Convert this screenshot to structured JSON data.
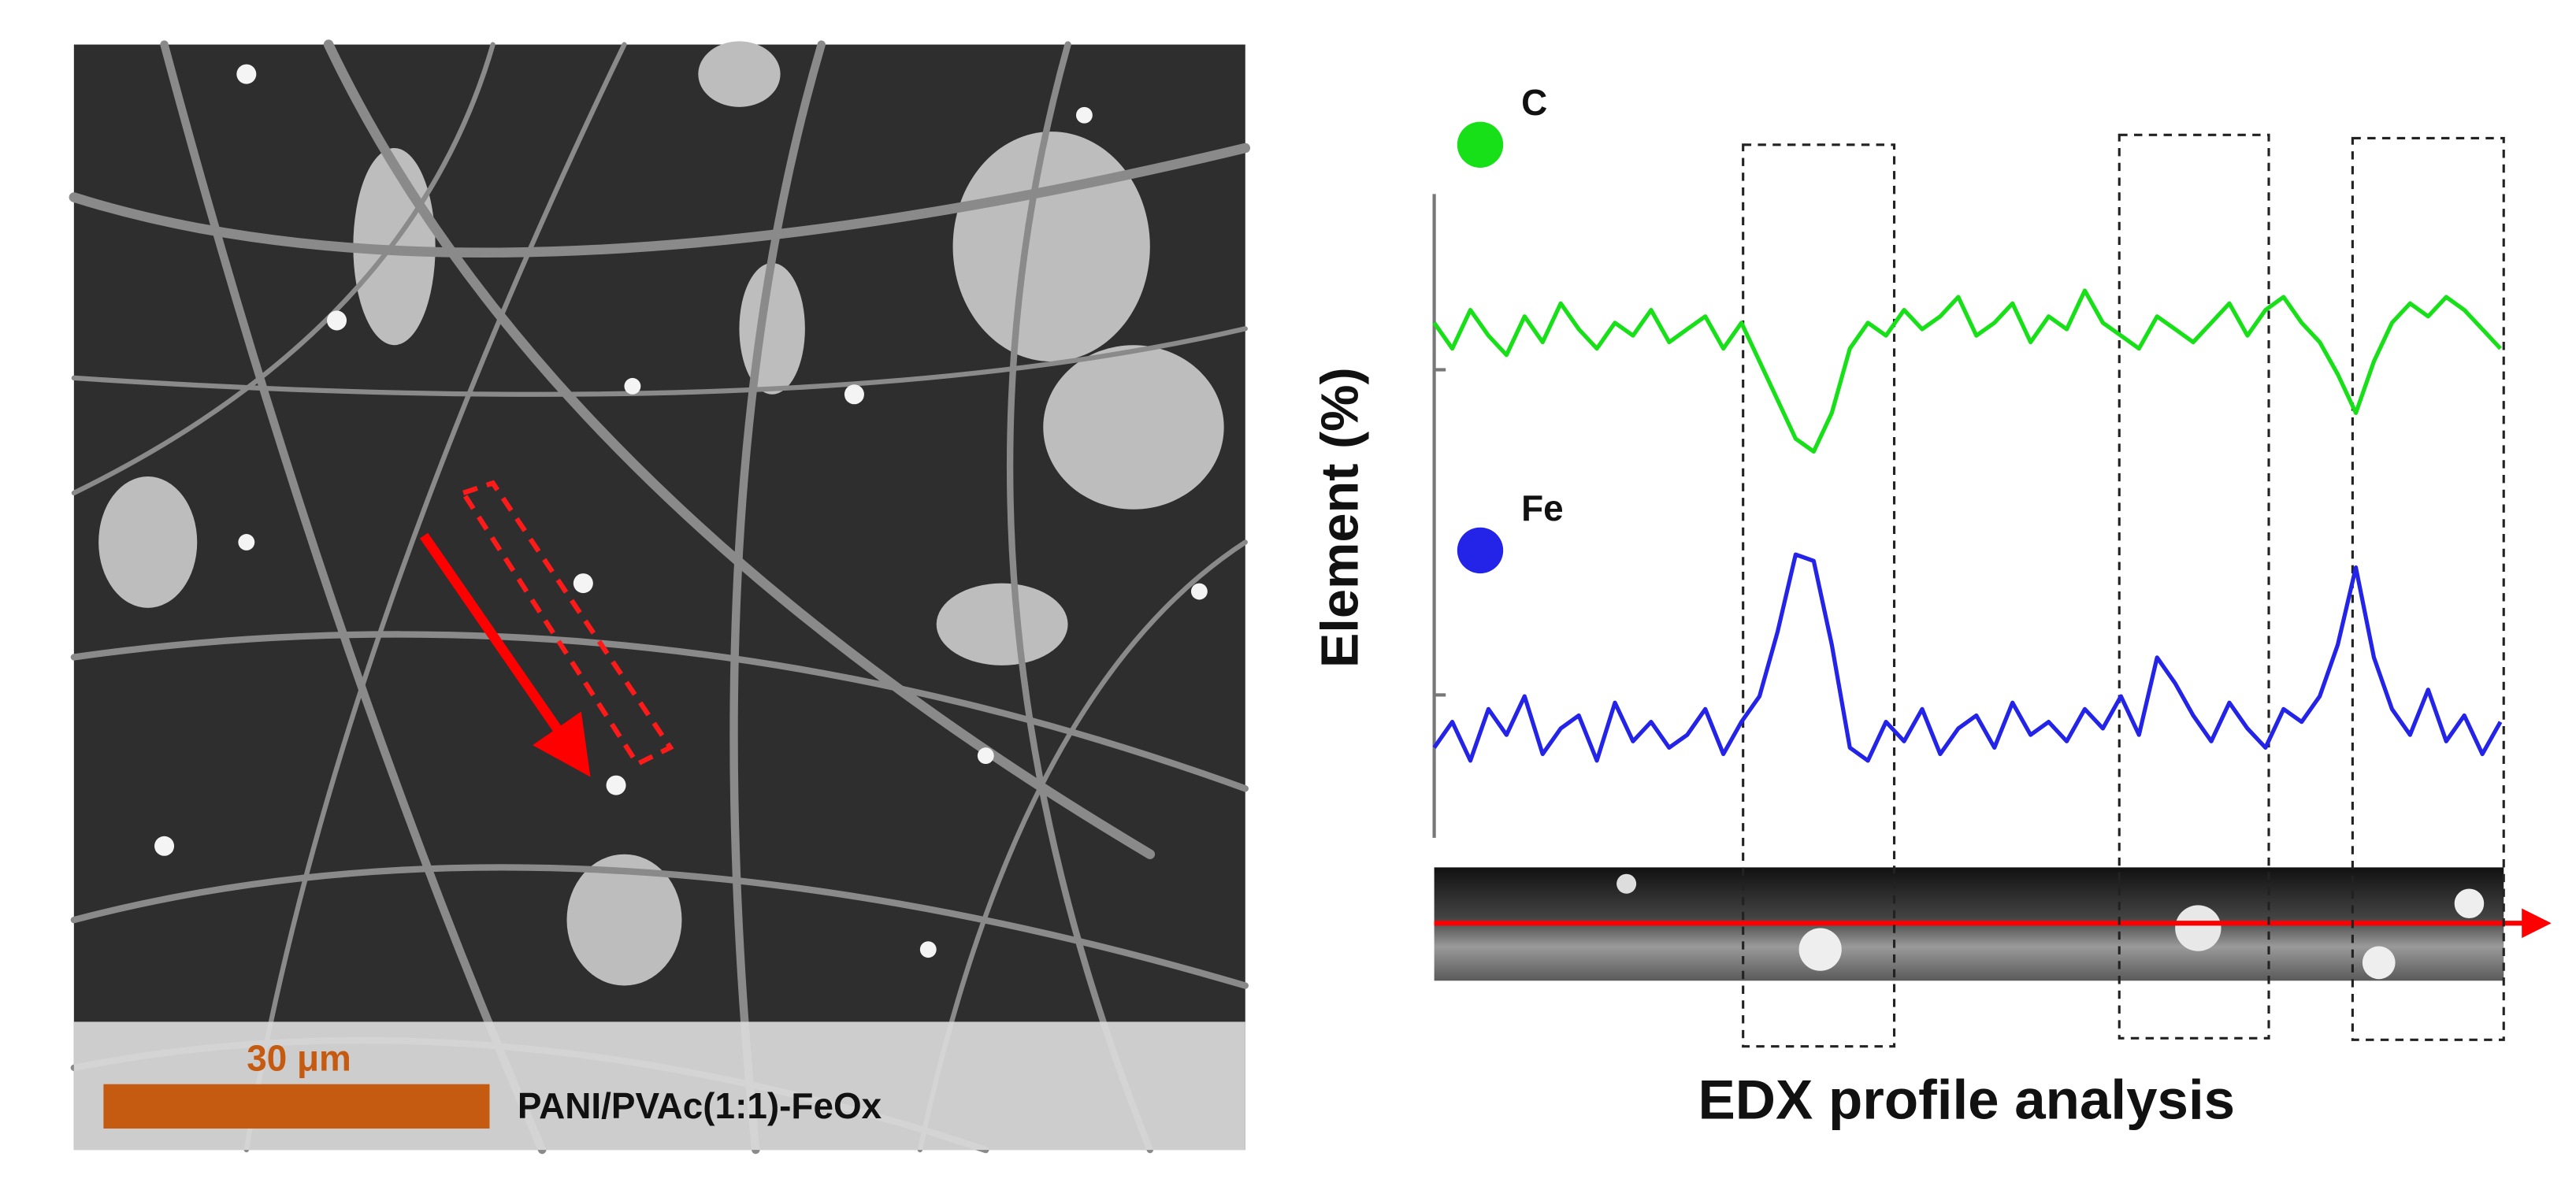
{
  "sem_panel": {
    "scale_bar_label": "30 μm",
    "sample_label": "PANI/PVAc(1:1)-FeOx"
  },
  "chart_data": {
    "type": "line",
    "title": "EDX profile analysis",
    "ylabel": "Element (%)",
    "ylim": [
      0,
      100
    ],
    "series": [
      {
        "name": "C",
        "color": "#18e018",
        "values": [
          80,
          76,
          82,
          78,
          75,
          81,
          77,
          83,
          79,
          76,
          80,
          78,
          82,
          77,
          79,
          81,
          76,
          80,
          74,
          68,
          62,
          60,
          66,
          76,
          80,
          78,
          82,
          79,
          81,
          84,
          78,
          80,
          83,
          77,
          81,
          79,
          85,
          80,
          78,
          76,
          81,
          79,
          77,
          80,
          83,
          78,
          82,
          84,
          80,
          77,
          72,
          66,
          74,
          80,
          83,
          81,
          84,
          82,
          79,
          76
        ]
      },
      {
        "name": "Fe",
        "color": "#2424e8",
        "values": [
          14,
          18,
          12,
          20,
          16,
          22,
          13,
          17,
          19,
          12,
          21,
          15,
          18,
          14,
          16,
          20,
          13,
          18,
          22,
          32,
          44,
          43,
          30,
          14,
          12,
          18,
          15,
          20,
          13,
          17,
          19,
          14,
          21,
          16,
          18,
          15,
          20,
          17,
          22,
          16,
          28,
          24,
          19,
          15,
          21,
          17,
          14,
          20,
          18,
          22,
          30,
          42,
          28,
          20,
          16,
          23,
          15,
          19,
          13,
          18
        ]
      }
    ]
  }
}
